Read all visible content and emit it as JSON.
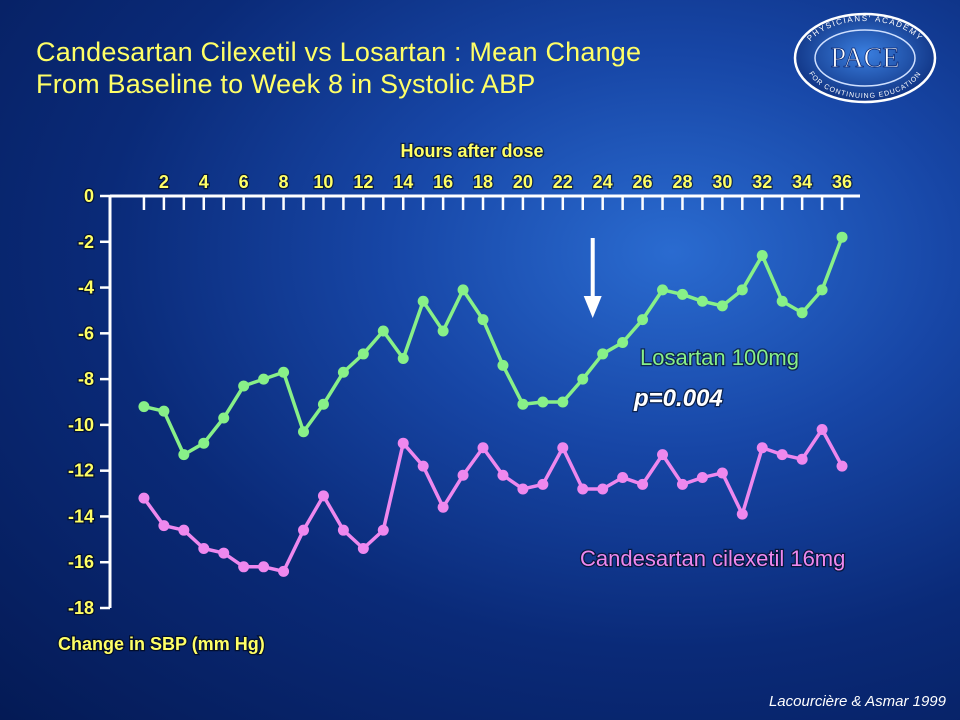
{
  "slide": {
    "title_line1": "Candesartan Cilexetil vs Losartan : Mean Change",
    "title_line2": "From  Baseline to Week 8 in Systolic ABP",
    "citation": "Lacourcière & Asmar 1999",
    "logo": {
      "icon": "pace-logo",
      "text": "PACE",
      "ring_top": "PHYSICIANS' ACADEMY",
      "ring_bottom": "FOR CONTINUING EDUCATION"
    }
  },
  "colors": {
    "title": "#ffff66",
    "axis_text": "#ffff66",
    "axis_line": "#ffffff",
    "losartan": "#88f088",
    "candesartan": "#ee88ee",
    "annotation": "#ffffff"
  },
  "chart_data": {
    "type": "line",
    "title": "",
    "xlabel": "Hours after dose",
    "ylabel": "Change in SBP (mm Hg)",
    "x_axis_position": "top",
    "xlim": [
      0,
      37
    ],
    "ylim": [
      -18,
      0
    ],
    "x_tick_labels": [
      "2",
      "4",
      "6",
      "8",
      "10",
      "12",
      "14",
      "16",
      "18",
      "20",
      "22",
      "24",
      "26",
      "28",
      "30",
      "32",
      "34",
      "36"
    ],
    "x_tick_values": [
      2,
      4,
      6,
      8,
      10,
      12,
      14,
      16,
      18,
      20,
      22,
      24,
      26,
      28,
      30,
      32,
      34,
      36
    ],
    "y_ticks": [
      0,
      -2,
      -4,
      -6,
      -8,
      -10,
      -12,
      -14,
      -16,
      -18
    ],
    "x": [
      1,
      2,
      3,
      4,
      5,
      6,
      7,
      8,
      9,
      10,
      11,
      12,
      13,
      14,
      15,
      16,
      17,
      18,
      19,
      20,
      21,
      22,
      23,
      24,
      25,
      26,
      27,
      28,
      29,
      30,
      31,
      32,
      33,
      34,
      35,
      36
    ],
    "series": [
      {
        "name": "Losartan 100mg",
        "color": "#88f088",
        "values": [
          -9.2,
          -9.4,
          -11.3,
          -10.8,
          -9.7,
          -8.3,
          -8.0,
          -7.7,
          -10.3,
          -9.1,
          -7.7,
          -6.9,
          -5.9,
          -7.1,
          -4.6,
          -5.9,
          -4.1,
          -5.4,
          -7.4,
          -9.1,
          -9.0,
          -9.0,
          -8.0,
          -6.9,
          -6.4,
          -5.4,
          -4.1,
          -4.3,
          -4.6,
          -4.8,
          -4.1,
          -2.6,
          -4.6,
          -5.1,
          -4.1,
          -1.8
        ]
      },
      {
        "name": "Candesartan cilexetil 16mg",
        "color": "#ee88ee",
        "values": [
          -13.2,
          -14.4,
          -14.6,
          -15.4,
          -15.6,
          -16.2,
          -16.2,
          -16.4,
          -14.6,
          -13.1,
          -14.6,
          -15.4,
          -14.6,
          -10.8,
          -11.8,
          -13.6,
          -12.2,
          -11.0,
          -12.2,
          -12.8,
          -12.6,
          -11.0,
          -12.8,
          -12.8,
          -12.3,
          -12.6,
          -11.3,
          -12.6,
          -12.3,
          -12.1,
          -13.9,
          -11.0,
          -11.3,
          -11.5,
          -10.2,
          -11.8
        ]
      }
    ],
    "annotations": [
      {
        "text": "p=0.004",
        "type": "arrow-down",
        "x": 23.5
      }
    ]
  }
}
